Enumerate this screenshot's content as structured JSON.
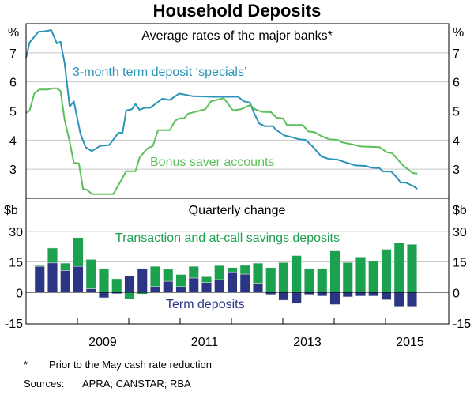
{
  "chart_data": [
    {
      "type": "line",
      "title": "Household Deposits",
      "subtitle": "Average rates of the major banks*",
      "ylabel_left": "%",
      "ylabel_right": "%",
      "ylim": [
        2,
        8
      ],
      "xlim": [
        2008,
        2016.25
      ],
      "yticks": [
        "7",
        "6",
        "5",
        "4",
        "3"
      ],
      "ytick_values": [
        7,
        6,
        5,
        4,
        3
      ],
      "grid": true,
      "colors": {
        "term": "#2a93b8",
        "bonus": "#5cbf5c"
      },
      "series": [
        {
          "name": "3-month term deposit ‘specials’",
          "x": [
            2008.0,
            2008.07,
            2008.24,
            2008.36,
            2008.49,
            2008.6,
            2008.67,
            2008.75,
            2008.85,
            2008.93,
            2009.06,
            2009.16,
            2009.28,
            2009.44,
            2009.62,
            2009.8,
            2009.88,
            2009.95,
            2010.06,
            2010.13,
            2010.21,
            2010.31,
            2010.42,
            2010.65,
            2010.8,
            2010.98,
            2011.24,
            2011.65,
            2012.13,
            2012.24,
            2012.36,
            2012.44,
            2012.54,
            2012.65,
            2012.8,
            2012.88,
            2013.03,
            2013.18,
            2013.31,
            2013.44,
            2013.57,
            2013.75,
            2013.9,
            2014.06,
            2014.21,
            2014.42,
            2014.62,
            2014.72,
            2014.88,
            2014.95,
            2015.11,
            2015.24,
            2015.29,
            2015.39,
            2015.54,
            2015.62
          ],
          "y": [
            6.82,
            7.36,
            7.72,
            7.74,
            7.78,
            7.32,
            7.38,
            6.64,
            5.15,
            5.33,
            4.21,
            3.76,
            3.62,
            3.8,
            3.83,
            4.25,
            4.25,
            5.02,
            5.06,
            5.24,
            5.04,
            5.11,
            5.11,
            5.42,
            5.38,
            5.6,
            5.51,
            5.49,
            5.49,
            5.33,
            5.29,
            4.93,
            4.57,
            4.48,
            4.48,
            4.34,
            4.16,
            4.1,
            4.03,
            4.01,
            3.8,
            3.44,
            3.35,
            3.33,
            3.24,
            3.13,
            3.11,
            3.05,
            3.04,
            2.92,
            2.92,
            2.68,
            2.54,
            2.54,
            2.42,
            2.32
          ]
        },
        {
          "name": "Bonus saver accounts",
          "x": [
            2008.0,
            2008.07,
            2008.16,
            2008.26,
            2008.42,
            2008.52,
            2008.6,
            2008.67,
            2008.75,
            2008.85,
            2008.93,
            2009.03,
            2009.11,
            2009.18,
            2009.29,
            2009.7,
            2009.95,
            2010.13,
            2010.21,
            2010.36,
            2010.47,
            2010.57,
            2010.8,
            2010.9,
            2010.98,
            2011.08,
            2011.16,
            2011.49,
            2011.6,
            2011.85,
            2012.03,
            2012.18,
            2012.36,
            2012.47,
            2012.6,
            2012.77,
            2012.88,
            2013.0,
            2013.08,
            2013.39,
            2013.49,
            2013.62,
            2013.75,
            2013.9,
            2014.06,
            2014.16,
            2014.36,
            2014.52,
            2014.88,
            2015.03,
            2015.13,
            2015.34,
            2015.42,
            2015.54,
            2015.62
          ],
          "y": [
            4.93,
            5.02,
            5.6,
            5.74,
            5.74,
            5.78,
            5.78,
            5.69,
            4.7,
            3.94,
            3.22,
            3.2,
            2.32,
            2.3,
            2.14,
            2.14,
            2.93,
            2.93,
            3.4,
            3.71,
            3.8,
            4.34,
            4.34,
            4.66,
            4.75,
            4.75,
            4.91,
            5.06,
            5.33,
            5.44,
            5.02,
            5.06,
            5.2,
            5.05,
            4.97,
            4.96,
            4.77,
            4.75,
            4.52,
            4.52,
            4.3,
            4.27,
            4.14,
            4.03,
            4.01,
            3.92,
            3.85,
            3.78,
            3.76,
            3.58,
            3.55,
            3.13,
            3.02,
            2.86,
            2.85
          ]
        }
      ]
    },
    {
      "type": "bar",
      "stacked": true,
      "subtitle": "Quarterly change",
      "ylabel_left": "$b",
      "ylabel_right": "$b",
      "ylim": [
        -15.4,
        46.2
      ],
      "yticks": [
        "30",
        "15",
        "0",
        "-15"
      ],
      "ytick_values": [
        30,
        15,
        0,
        -15
      ],
      "xticks": [
        "2009",
        "2011",
        "2013",
        "2015"
      ],
      "grid": true,
      "colors": {
        "transaction": "#1ca14f",
        "term": "#2b3583"
      },
      "categories": [
        "Mar 2008",
        "Jun 2008",
        "Sep 2008",
        "Dec 2008",
        "Mar 2009",
        "Jun 2009",
        "Sep 2009",
        "Dec 2009",
        "Mar 2010",
        "Jun 2010",
        "Sep 2010",
        "Dec 2010",
        "Mar 2011",
        "Jun 2011",
        "Sep 2011",
        "Dec 2011",
        "Mar 2012",
        "Jun 2012",
        "Sep 2012",
        "Dec 2012",
        "Mar 2013",
        "Jun 2013",
        "Sep 2013",
        "Dec 2013",
        "Mar 2014",
        "Jun 2014",
        "Sep 2014",
        "Dec 2014",
        "Mar 2015",
        "Jun 2015"
      ],
      "series": [
        {
          "name": "Term deposits",
          "values": [
            12.8,
            14.5,
            10.8,
            12.8,
            1.8,
            -2.6,
            -0.6,
            8.1,
            11.8,
            2.9,
            5.5,
            2.9,
            7.1,
            4.9,
            6.3,
            10.1,
            9.0,
            4.5,
            -1.0,
            -3.8,
            -5.4,
            -1.0,
            -1.8,
            -5.9,
            -2.2,
            -1.8,
            -1.8,
            -3.6,
            -6.8,
            -6.8
          ]
        },
        {
          "name": "Transaction and at-call savings deposits",
          "values": [
            0.4,
            7.3,
            3.6,
            14.1,
            14.4,
            11.8,
            6.7,
            -3.3,
            -0.8,
            9.9,
            5.9,
            5.9,
            5.7,
            2.8,
            6.9,
            2.1,
            4.3,
            9.9,
            12.2,
            14.7,
            18.1,
            11.8,
            11.8,
            20.4,
            14.7,
            17.4,
            15.5,
            21.2,
            24.4,
            23.6
          ]
        }
      ]
    }
  ],
  "footnote": {
    "marker": "*",
    "text": "Prior to the May cash rate reduction"
  },
  "sources": {
    "label": "Sources:",
    "text": "APRA; CANSTAR; RBA"
  }
}
